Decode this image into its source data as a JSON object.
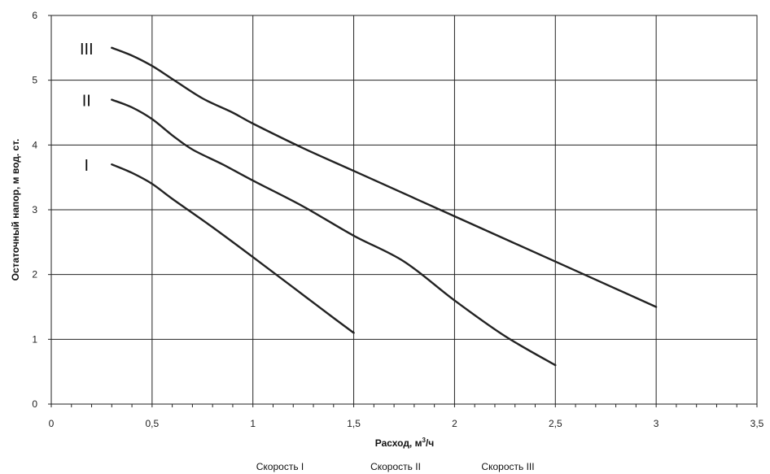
{
  "chart_data": {
    "type": "line",
    "xlabel": "Расход, м³/ч",
    "ylabel": "Остаточный напор, м вод. ст.",
    "xlim": [
      0,
      3.5
    ],
    "ylim": [
      0,
      6
    ],
    "x_ticks": [
      {
        "value": 0,
        "label": "0"
      },
      {
        "value": 0.5,
        "label": "0,5"
      },
      {
        "value": 1,
        "label": "1"
      },
      {
        "value": 1.5,
        "label": "1,5"
      },
      {
        "value": 2,
        "label": "2"
      },
      {
        "value": 2.5,
        "label": "2,5"
      },
      {
        "value": 3,
        "label": "3"
      },
      {
        "value": 3.5,
        "label": "3,5"
      }
    ],
    "y_ticks": [
      {
        "value": 0,
        "label": "0"
      },
      {
        "value": 1,
        "label": "1"
      },
      {
        "value": 2,
        "label": "2"
      },
      {
        "value": 3,
        "label": "3"
      },
      {
        "value": 4,
        "label": "4"
      },
      {
        "value": 5,
        "label": "5"
      },
      {
        "value": 6,
        "label": "6"
      }
    ],
    "x_minor_step": 0.1,
    "grid": true,
    "legend_position": "bottom",
    "series": [
      {
        "name": "Скорость I",
        "label": "I",
        "color": "#222222",
        "points": [
          [
            0.3,
            3.7
          ],
          [
            0.4,
            3.57
          ],
          [
            0.5,
            3.4
          ],
          [
            0.6,
            3.17
          ],
          [
            0.8,
            2.73
          ],
          [
            1.0,
            2.27
          ],
          [
            1.2,
            1.8
          ],
          [
            1.4,
            1.33
          ],
          [
            1.5,
            1.1
          ]
        ]
      },
      {
        "name": "Скорость II",
        "label": "II",
        "color": "#222222",
        "points": [
          [
            0.3,
            4.7
          ],
          [
            0.4,
            4.58
          ],
          [
            0.5,
            4.4
          ],
          [
            0.6,
            4.15
          ],
          [
            0.7,
            3.93
          ],
          [
            0.85,
            3.7
          ],
          [
            1.0,
            3.45
          ],
          [
            1.25,
            3.05
          ],
          [
            1.5,
            2.6
          ],
          [
            1.75,
            2.2
          ],
          [
            2.0,
            1.6
          ],
          [
            2.25,
            1.05
          ],
          [
            2.5,
            0.6
          ]
        ]
      },
      {
        "name": "Скорость III",
        "label": "III",
        "color": "#222222",
        "points": [
          [
            0.3,
            5.5
          ],
          [
            0.4,
            5.38
          ],
          [
            0.5,
            5.22
          ],
          [
            0.6,
            5.02
          ],
          [
            0.75,
            4.72
          ],
          [
            0.9,
            4.5
          ],
          [
            1.0,
            4.33
          ],
          [
            1.25,
            3.95
          ],
          [
            1.5,
            3.6
          ],
          [
            2.0,
            2.9
          ],
          [
            2.5,
            2.2
          ],
          [
            3.0,
            1.5
          ]
        ]
      }
    ]
  }
}
